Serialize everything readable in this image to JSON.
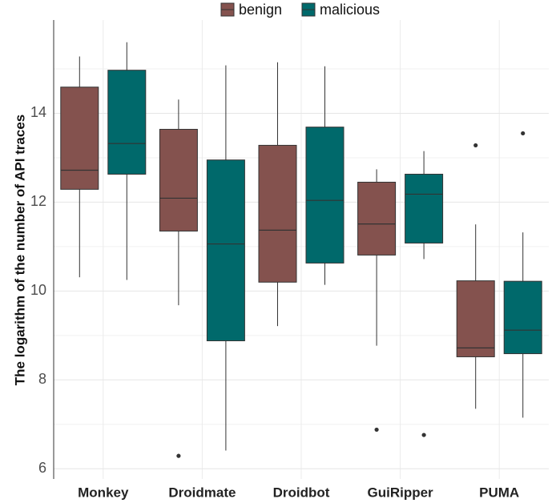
{
  "chart_data": {
    "type": "box",
    "y_label": "The logarithm of the number of API traces",
    "categories": [
      "Monkey",
      "Droidmate",
      "Droidbot",
      "GuiRipper",
      "PUMA"
    ],
    "ylim": [
      5.77,
      16.1
    ],
    "yticks": [
      6,
      8,
      10,
      12,
      14
    ],
    "grid": true,
    "legend": "top",
    "series": [
      {
        "name": "benign",
        "color": "#84524e",
        "boxes": [
          {
            "whislo": 10.31,
            "q1": 12.29,
            "med": 12.72,
            "q3": 14.59,
            "whishi": 15.28,
            "fliers": []
          },
          {
            "whislo": 9.68,
            "q1": 11.35,
            "med": 12.09,
            "q3": 13.64,
            "whishi": 14.31,
            "fliers": [
              6.29
            ]
          },
          {
            "whislo": 9.21,
            "q1": 10.2,
            "med": 11.37,
            "q3": 13.28,
            "whishi": 15.15,
            "fliers": []
          },
          {
            "whislo": 8.77,
            "q1": 10.81,
            "med": 11.51,
            "q3": 12.45,
            "whishi": 12.74,
            "fliers": [
              6.88
            ]
          },
          {
            "whislo": 7.35,
            "q1": 8.52,
            "med": 8.72,
            "q3": 10.23,
            "whishi": 11.5,
            "fliers": [
              13.28
            ]
          }
        ]
      },
      {
        "name": "malicious",
        "color": "#00696b",
        "boxes": [
          {
            "whislo": 10.25,
            "q1": 12.63,
            "med": 13.32,
            "q3": 14.97,
            "whishi": 15.6,
            "fliers": []
          },
          {
            "whislo": 6.41,
            "q1": 8.88,
            "med": 11.06,
            "q3": 12.95,
            "whishi": 15.08,
            "fliers": []
          },
          {
            "whislo": 10.14,
            "q1": 10.63,
            "med": 12.04,
            "q3": 13.69,
            "whishi": 15.06,
            "fliers": []
          },
          {
            "whislo": 10.72,
            "q1": 11.08,
            "med": 12.18,
            "q3": 12.63,
            "whishi": 13.15,
            "fliers": [
              6.76
            ]
          },
          {
            "whislo": 7.15,
            "q1": 8.59,
            "med": 9.12,
            "q3": 10.22,
            "whishi": 11.32,
            "fliers": [
              13.55
            ]
          }
        ]
      }
    ]
  }
}
